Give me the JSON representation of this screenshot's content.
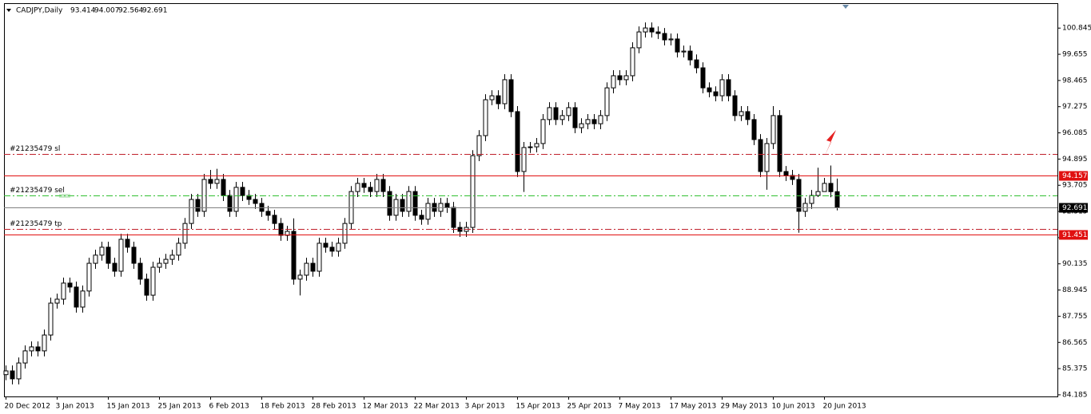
{
  "chart_data": {
    "type": "candlestick",
    "symbol": "CADJPY,Daily",
    "ylim": [
      84.11,
      101.94
    ],
    "yticks": [
      84.185,
      85.375,
      86.565,
      87.755,
      88.945,
      90.135,
      91.325,
      92.515,
      93.705,
      94.895,
      96.085,
      97.275,
      98.465,
      99.655,
      100.845
    ],
    "up_color": "#ffffff",
    "down_color": "#000000",
    "categories": [
      "20 Dec 2012",
      null,
      null,
      null,
      null,
      null,
      null,
      null,
      "3 Jan 2013",
      null,
      null,
      null,
      null,
      null,
      null,
      null,
      "15 Jan 2013",
      null,
      null,
      null,
      null,
      null,
      null,
      null,
      "25 Jan 2013",
      null,
      null,
      null,
      null,
      null,
      null,
      null,
      "6 Feb 2013",
      null,
      null,
      null,
      null,
      null,
      null,
      null,
      "18 Feb 2013",
      null,
      null,
      null,
      null,
      null,
      null,
      null,
      "28 Feb 2013",
      null,
      null,
      null,
      null,
      null,
      null,
      null,
      "12 Mar 2013",
      null,
      null,
      null,
      null,
      null,
      null,
      null,
      "22 Mar 2013",
      null,
      null,
      null,
      null,
      null,
      null,
      null,
      "3 Apr 2013",
      null,
      null,
      null,
      null,
      null,
      null,
      null,
      "15 Apr 2013",
      null,
      null,
      null,
      null,
      null,
      null,
      null,
      "25 Apr 2013",
      null,
      null,
      null,
      null,
      null,
      null,
      null,
      "7 May 2013",
      null,
      null,
      null,
      null,
      null,
      null,
      null,
      "17 May 2013",
      null,
      null,
      null,
      null,
      null,
      null,
      null,
      "29 May 2013",
      null,
      null,
      null,
      null,
      null,
      null,
      null,
      "10 Jun 2013",
      null,
      null,
      null,
      null,
      null,
      null,
      null,
      "20 Jun 2013",
      null,
      null
    ],
    "candles": [
      [
        85.1,
        85.52,
        84.85,
        85.27
      ],
      [
        85.27,
        85.52,
        84.66,
        84.91
      ],
      [
        84.91,
        85.88,
        84.66,
        85.63
      ],
      [
        85.63,
        86.43,
        85.38,
        86.18
      ],
      [
        86.18,
        86.61,
        85.93,
        86.36
      ],
      [
        86.36,
        86.61,
        85.93,
        86.18
      ],
      [
        86.18,
        87.15,
        85.93,
        86.9
      ],
      [
        86.9,
        88.6,
        86.65,
        88.35
      ],
      [
        88.35,
        88.78,
        88.1,
        88.53
      ],
      [
        88.53,
        89.51,
        88.28,
        89.26
      ],
      [
        89.26,
        89.51,
        88.83,
        89.08
      ],
      [
        89.08,
        89.33,
        87.92,
        88.17
      ],
      [
        88.17,
        89.15,
        87.92,
        88.9
      ],
      [
        88.9,
        90.41,
        88.65,
        90.16
      ],
      [
        90.16,
        90.78,
        89.91,
        90.53
      ],
      [
        90.53,
        91.14,
        90.28,
        90.89
      ],
      [
        90.89,
        91.14,
        89.91,
        90.16
      ],
      [
        90.16,
        90.41,
        89.55,
        89.8
      ],
      [
        89.8,
        91.5,
        89.55,
        91.25
      ],
      [
        91.25,
        91.5,
        90.64,
        90.89
      ],
      [
        90.89,
        91.14,
        89.91,
        90.16
      ],
      [
        90.16,
        90.41,
        89.19,
        89.44
      ],
      [
        89.44,
        89.69,
        88.46,
        88.71
      ],
      [
        88.71,
        90.23,
        88.46,
        89.98
      ],
      [
        89.98,
        90.41,
        89.73,
        90.16
      ],
      [
        90.16,
        90.59,
        89.91,
        90.34
      ],
      [
        90.34,
        90.78,
        90.09,
        90.53
      ],
      [
        90.53,
        91.32,
        90.28,
        91.07
      ],
      [
        91.07,
        92.22,
        90.82,
        91.97
      ],
      [
        91.97,
        93.31,
        91.72,
        93.06
      ],
      [
        93.06,
        93.31,
        92.27,
        92.52
      ],
      [
        92.52,
        94.22,
        92.27,
        93.97
      ],
      [
        93.97,
        94.4,
        93.54,
        93.79
      ],
      [
        93.79,
        94.45,
        93.54,
        93.97
      ],
      [
        93.97,
        94.22,
        92.99,
        93.24
      ],
      [
        93.24,
        93.49,
        92.27,
        92.52
      ],
      [
        92.52,
        93.86,
        92.27,
        93.61
      ],
      [
        93.61,
        93.86,
        92.99,
        93.24
      ],
      [
        93.24,
        93.49,
        92.81,
        93.06
      ],
      [
        93.06,
        93.31,
        92.63,
        92.88
      ],
      [
        92.88,
        93.13,
        92.27,
        92.52
      ],
      [
        92.52,
        92.77,
        92.09,
        92.34
      ],
      [
        92.34,
        92.59,
        91.72,
        91.97
      ],
      [
        91.97,
        92.22,
        91.18,
        91.43
      ],
      [
        91.43,
        91.86,
        91.18,
        91.61
      ],
      [
        91.61,
        92.2,
        89.19,
        89.44
      ],
      [
        89.44,
        89.87,
        88.7,
        89.62
      ],
      [
        89.62,
        90.41,
        89.37,
        90.16
      ],
      [
        90.16,
        90.41,
        89.55,
        89.8
      ],
      [
        89.8,
        91.32,
        89.55,
        91.07
      ],
      [
        91.07,
        91.32,
        90.64,
        90.89
      ],
      [
        90.89,
        91.14,
        90.46,
        90.71
      ],
      [
        90.71,
        91.32,
        90.46,
        91.07
      ],
      [
        91.07,
        92.22,
        90.82,
        91.97
      ],
      [
        91.97,
        93.67,
        91.72,
        93.42
      ],
      [
        93.42,
        94.04,
        93.17,
        93.79
      ],
      [
        93.79,
        94.04,
        93.36,
        93.61
      ],
      [
        93.61,
        93.86,
        93.17,
        93.42
      ],
      [
        93.42,
        94.22,
        93.17,
        93.97
      ],
      [
        93.97,
        94.22,
        93.17,
        93.42
      ],
      [
        93.42,
        93.67,
        92.09,
        92.34
      ],
      [
        92.34,
        93.31,
        92.09,
        93.06
      ],
      [
        93.06,
        93.31,
        92.27,
        92.52
      ],
      [
        92.52,
        93.67,
        92.27,
        93.42
      ],
      [
        93.42,
        93.67,
        92.09,
        92.34
      ],
      [
        92.34,
        92.59,
        91.91,
        92.16
      ],
      [
        92.16,
        93.13,
        91.91,
        92.88
      ],
      [
        92.88,
        93.13,
        92.27,
        92.52
      ],
      [
        92.52,
        93.13,
        92.27,
        92.88
      ],
      [
        92.88,
        93.13,
        92.45,
        92.7
      ],
      [
        92.7,
        92.95,
        91.54,
        91.79
      ],
      [
        91.79,
        92.04,
        91.36,
        91.61
      ],
      [
        91.61,
        92.04,
        91.36,
        91.79
      ],
      [
        91.79,
        95.3,
        91.54,
        95.05
      ],
      [
        95.05,
        96.21,
        94.8,
        95.96
      ],
      [
        95.96,
        97.84,
        95.71,
        97.59
      ],
      [
        97.59,
        98.02,
        97.34,
        97.77
      ],
      [
        97.77,
        98.02,
        97.16,
        97.41
      ],
      [
        97.41,
        98.75,
        97.16,
        98.5
      ],
      [
        98.5,
        98.75,
        96.8,
        97.05
      ],
      [
        97.05,
        97.3,
        94.08,
        94.33
      ],
      [
        94.33,
        95.67,
        93.4,
        95.42
      ],
      [
        95.42,
        95.67,
        95.17,
        95.45
      ],
      [
        95.45,
        95.85,
        95.2,
        95.6
      ],
      [
        95.6,
        96.94,
        95.35,
        96.69
      ],
      [
        96.69,
        97.48,
        96.44,
        97.23
      ],
      [
        97.23,
        97.48,
        96.44,
        96.69
      ],
      [
        96.69,
        97.12,
        96.44,
        96.87
      ],
      [
        96.87,
        97.48,
        96.62,
        97.23
      ],
      [
        97.23,
        97.48,
        96.07,
        96.32
      ],
      [
        96.32,
        96.75,
        96.07,
        96.5
      ],
      [
        96.5,
        96.94,
        96.25,
        96.69
      ],
      [
        96.69,
        96.94,
        96.25,
        96.5
      ],
      [
        96.5,
        97.12,
        96.25,
        96.87
      ],
      [
        96.87,
        98.38,
        96.62,
        98.13
      ],
      [
        98.13,
        98.93,
        97.88,
        98.68
      ],
      [
        98.68,
        98.93,
        98.25,
        98.5
      ],
      [
        98.5,
        98.93,
        98.25,
        98.68
      ],
      [
        98.68,
        100.2,
        98.43,
        99.95
      ],
      [
        99.95,
        100.92,
        99.7,
        100.67
      ],
      [
        100.67,
        101.1,
        100.42,
        100.85
      ],
      [
        100.85,
        101.1,
        100.42,
        100.67
      ],
      [
        100.67,
        100.92,
        100.35,
        100.6
      ],
      [
        100.6,
        100.85,
        100.06,
        100.31
      ],
      [
        100.31,
        100.6,
        100.06,
        100.35
      ],
      [
        100.35,
        100.6,
        99.51,
        99.76
      ],
      [
        99.76,
        100.05,
        99.51,
        99.8
      ],
      [
        99.8,
        100.05,
        99.15,
        99.4
      ],
      [
        99.4,
        99.65,
        98.79,
        99.04
      ],
      [
        99.04,
        99.29,
        97.88,
        98.13
      ],
      [
        98.13,
        98.38,
        97.7,
        97.95
      ],
      [
        97.95,
        98.2,
        97.52,
        97.77
      ],
      [
        97.77,
        98.75,
        97.52,
        98.5
      ],
      [
        98.5,
        98.75,
        97.52,
        97.77
      ],
      [
        97.77,
        98.02,
        96.62,
        96.87
      ],
      [
        96.87,
        97.3,
        96.62,
        97.05
      ],
      [
        97.05,
        97.3,
        96.44,
        96.69
      ],
      [
        96.69,
        96.94,
        95.53,
        95.78
      ],
      [
        95.78,
        96.03,
        94.08,
        94.33
      ],
      [
        94.33,
        95.85,
        93.5,
        95.6
      ],
      [
        95.6,
        97.3,
        95.35,
        96.87
      ],
      [
        96.87,
        97.12,
        94.08,
        94.33
      ],
      [
        94.33,
        94.58,
        93.9,
        94.15
      ],
      [
        94.15,
        94.4,
        93.72,
        93.97
      ],
      [
        93.97,
        94.22,
        91.55,
        92.52
      ],
      [
        92.52,
        93.13,
        92.27,
        92.88
      ],
      [
        92.88,
        93.49,
        92.63,
        93.24
      ],
      [
        93.24,
        94.5,
        93.17,
        93.42
      ],
      [
        93.42,
        94.04,
        93.54,
        93.79
      ],
      [
        93.79,
        94.6,
        93.16,
        93.414
      ],
      [
        93.414,
        94.007,
        92.564,
        92.691
      ]
    ],
    "levels": [
      {
        "name": "#21235479 sl",
        "value": 95.13,
        "color": "#c0202a",
        "style": "dashdot"
      },
      {
        "value": 94.157,
        "color": "#e01010",
        "style": "solid",
        "box": "#e01010"
      },
      {
        "name": "#21235479 sel",
        "value": 93.24,
        "color": "#30c030",
        "style": "dashdot"
      },
      {
        "value": 92.691,
        "color": "#808080",
        "style": "solid",
        "box": "#000000"
      },
      {
        "name": "#21235479 tp",
        "value": 91.72,
        "color": "#c0202a",
        "style": "dashdot"
      },
      {
        "value": 91.451,
        "color": "#e01010",
        "style": "solid",
        "box": "#e01010"
      }
    ]
  }
}
